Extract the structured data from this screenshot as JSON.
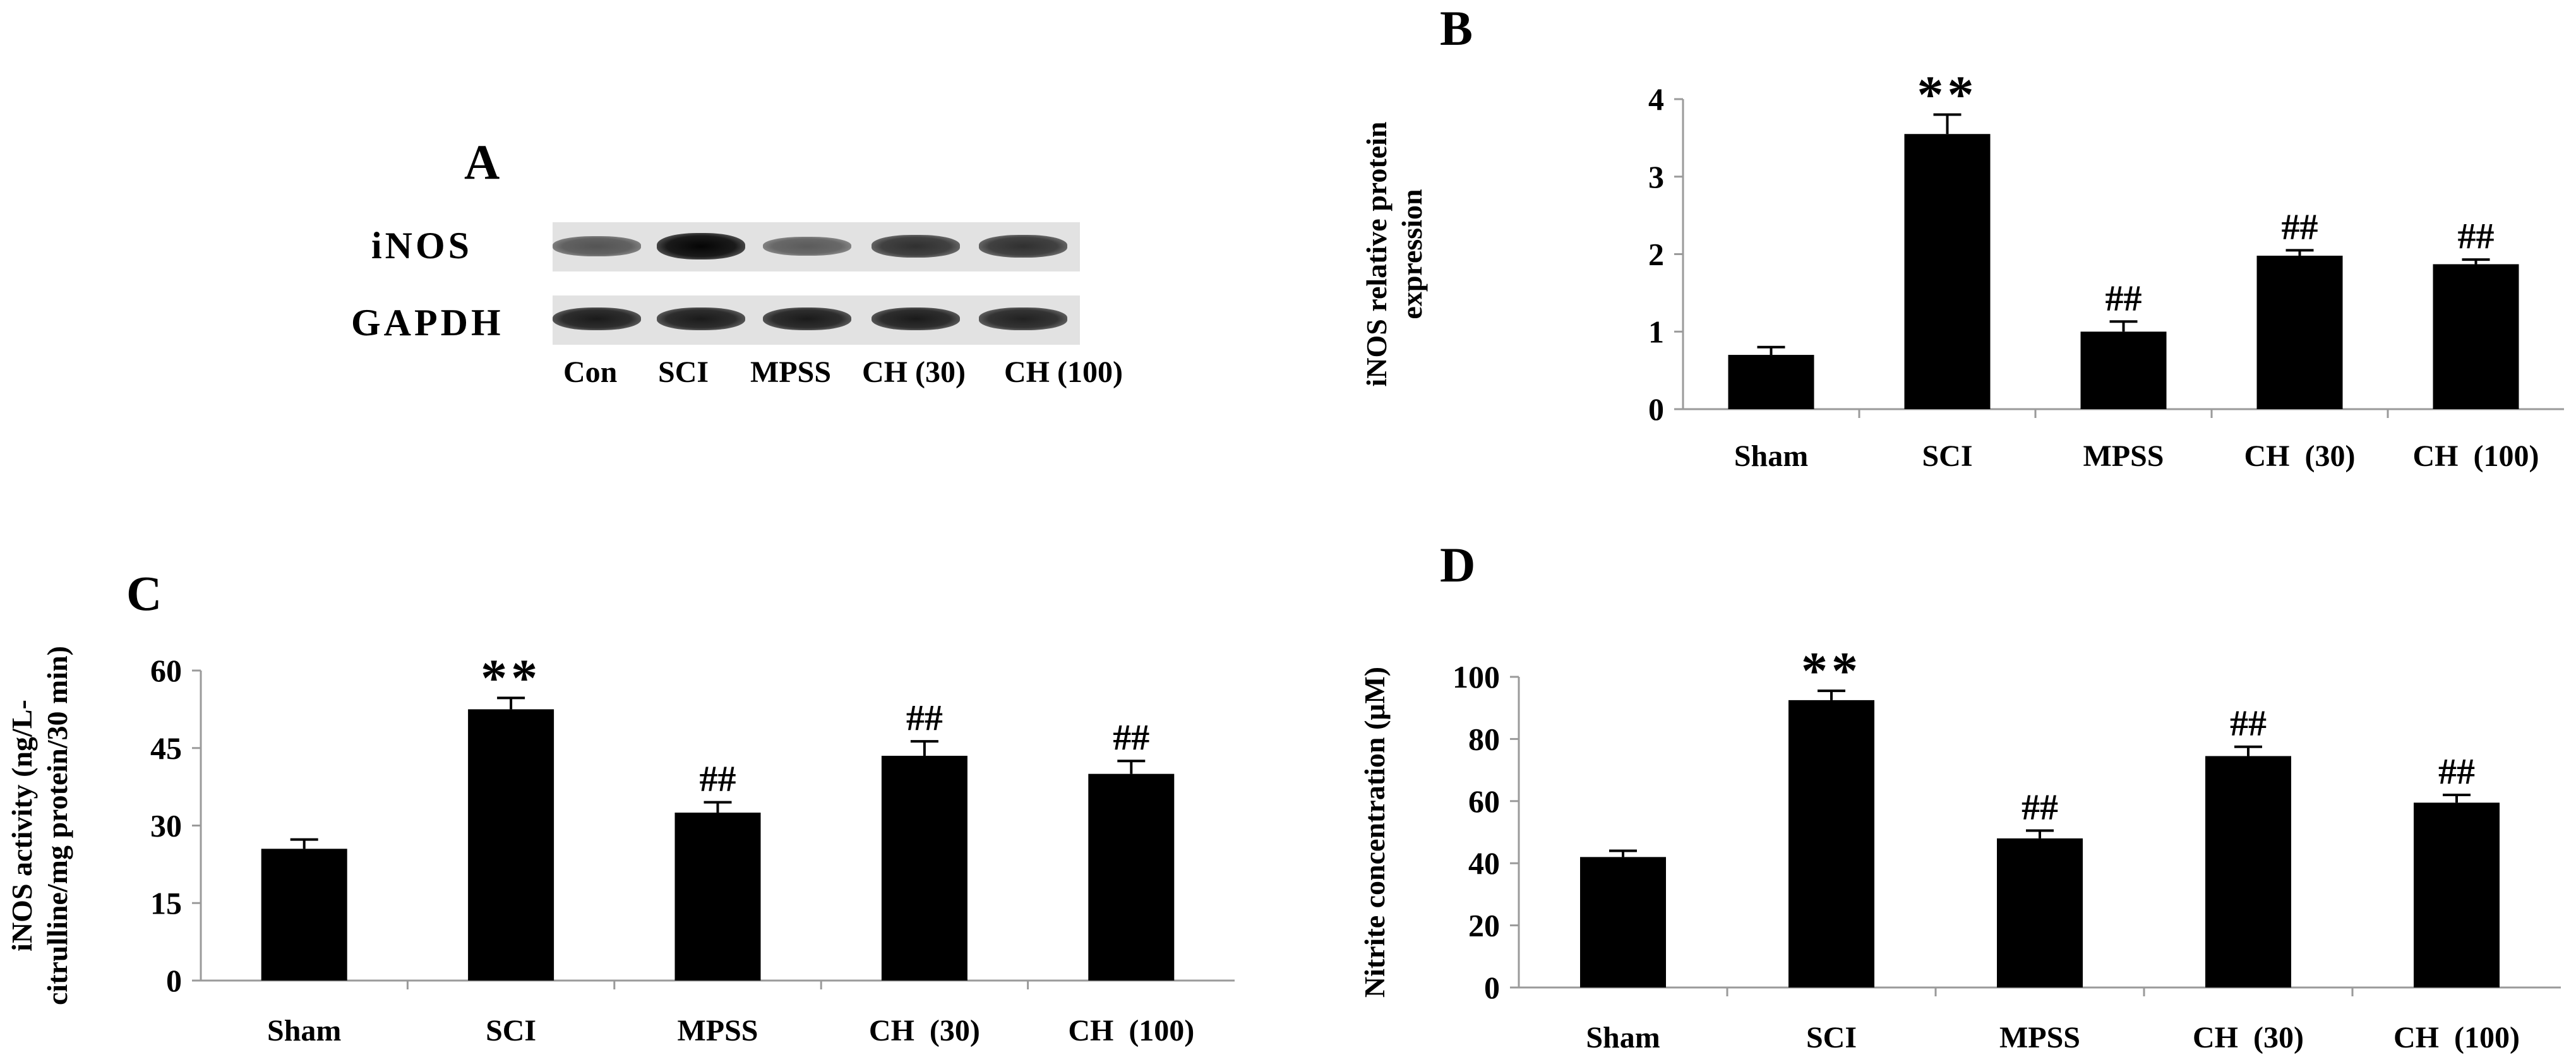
{
  "panels": [
    {
      "letter": "A"
    },
    {
      "letter": "B"
    },
    {
      "letter": "C"
    },
    {
      "letter": "D"
    }
  ],
  "blot": {
    "rows": [
      {
        "label": "iNOS",
        "band_intensity": [
          0.45,
          1.0,
          0.4,
          0.7,
          0.7
        ],
        "band_thickness": [
          0.6,
          1.0,
          0.55,
          0.75,
          0.75
        ]
      },
      {
        "label": "GAPDH",
        "band_intensity": [
          0.85,
          0.85,
          0.85,
          0.85,
          0.8
        ],
        "band_thickness": [
          0.8,
          0.8,
          0.8,
          0.8,
          0.75
        ]
      }
    ],
    "lanes": [
      "Con",
      "SCI",
      "MPSS",
      "CH (30)",
      "CH (100)"
    ]
  },
  "chart_data": [
    {
      "panel": "B",
      "type": "bar",
      "categories": [
        "Sham",
        "SCI",
        "MPSS",
        "CH (30)",
        "CH (100)"
      ],
      "values": [
        0.7,
        3.55,
        1.0,
        1.98,
        1.87
      ],
      "errors": [
        0.1,
        0.25,
        0.13,
        0.07,
        0.06
      ],
      "annotations": [
        "",
        "**",
        "##",
        "##",
        "##"
      ],
      "ylabel_lines": [
        "iNOS relative protein",
        "expression"
      ],
      "ylim": [
        0,
        4
      ],
      "yticks": [
        0,
        1,
        2,
        3,
        4
      ],
      "bar_color": "#000000"
    },
    {
      "panel": "C",
      "type": "bar",
      "categories": [
        "Sham",
        "SCI",
        "MPSS",
        "CH (30)",
        "CH (100)"
      ],
      "values": [
        25.5,
        52.5,
        32.5,
        43.5,
        40.0
      ],
      "errors": [
        1.8,
        2.2,
        2.0,
        2.8,
        2.5
      ],
      "annotations": [
        "",
        "**",
        "##",
        "##",
        "##"
      ],
      "ylabel_lines": [
        "iNOS activity (ng/L-",
        "citrulline/mg protein/30 min)"
      ],
      "ylim": [
        0,
        60
      ],
      "yticks": [
        0,
        15,
        30,
        45,
        60
      ],
      "bar_color": "#000000"
    },
    {
      "panel": "D",
      "type": "bar",
      "categories": [
        "Sham",
        "SCI",
        "MPSS",
        "CH (30)",
        "CH (100)"
      ],
      "values": [
        42,
        92.5,
        48,
        74.5,
        59.5
      ],
      "errors": [
        2,
        3,
        2.5,
        3,
        2.5
      ],
      "annotations": [
        "",
        "**",
        "##",
        "##",
        "##"
      ],
      "ylabel_lines": [
        "Nitrite concentration (μM)"
      ],
      "ylim": [
        0,
        100
      ],
      "yticks": [
        0,
        20,
        40,
        60,
        80,
        100
      ],
      "bar_color": "#000000"
    }
  ]
}
